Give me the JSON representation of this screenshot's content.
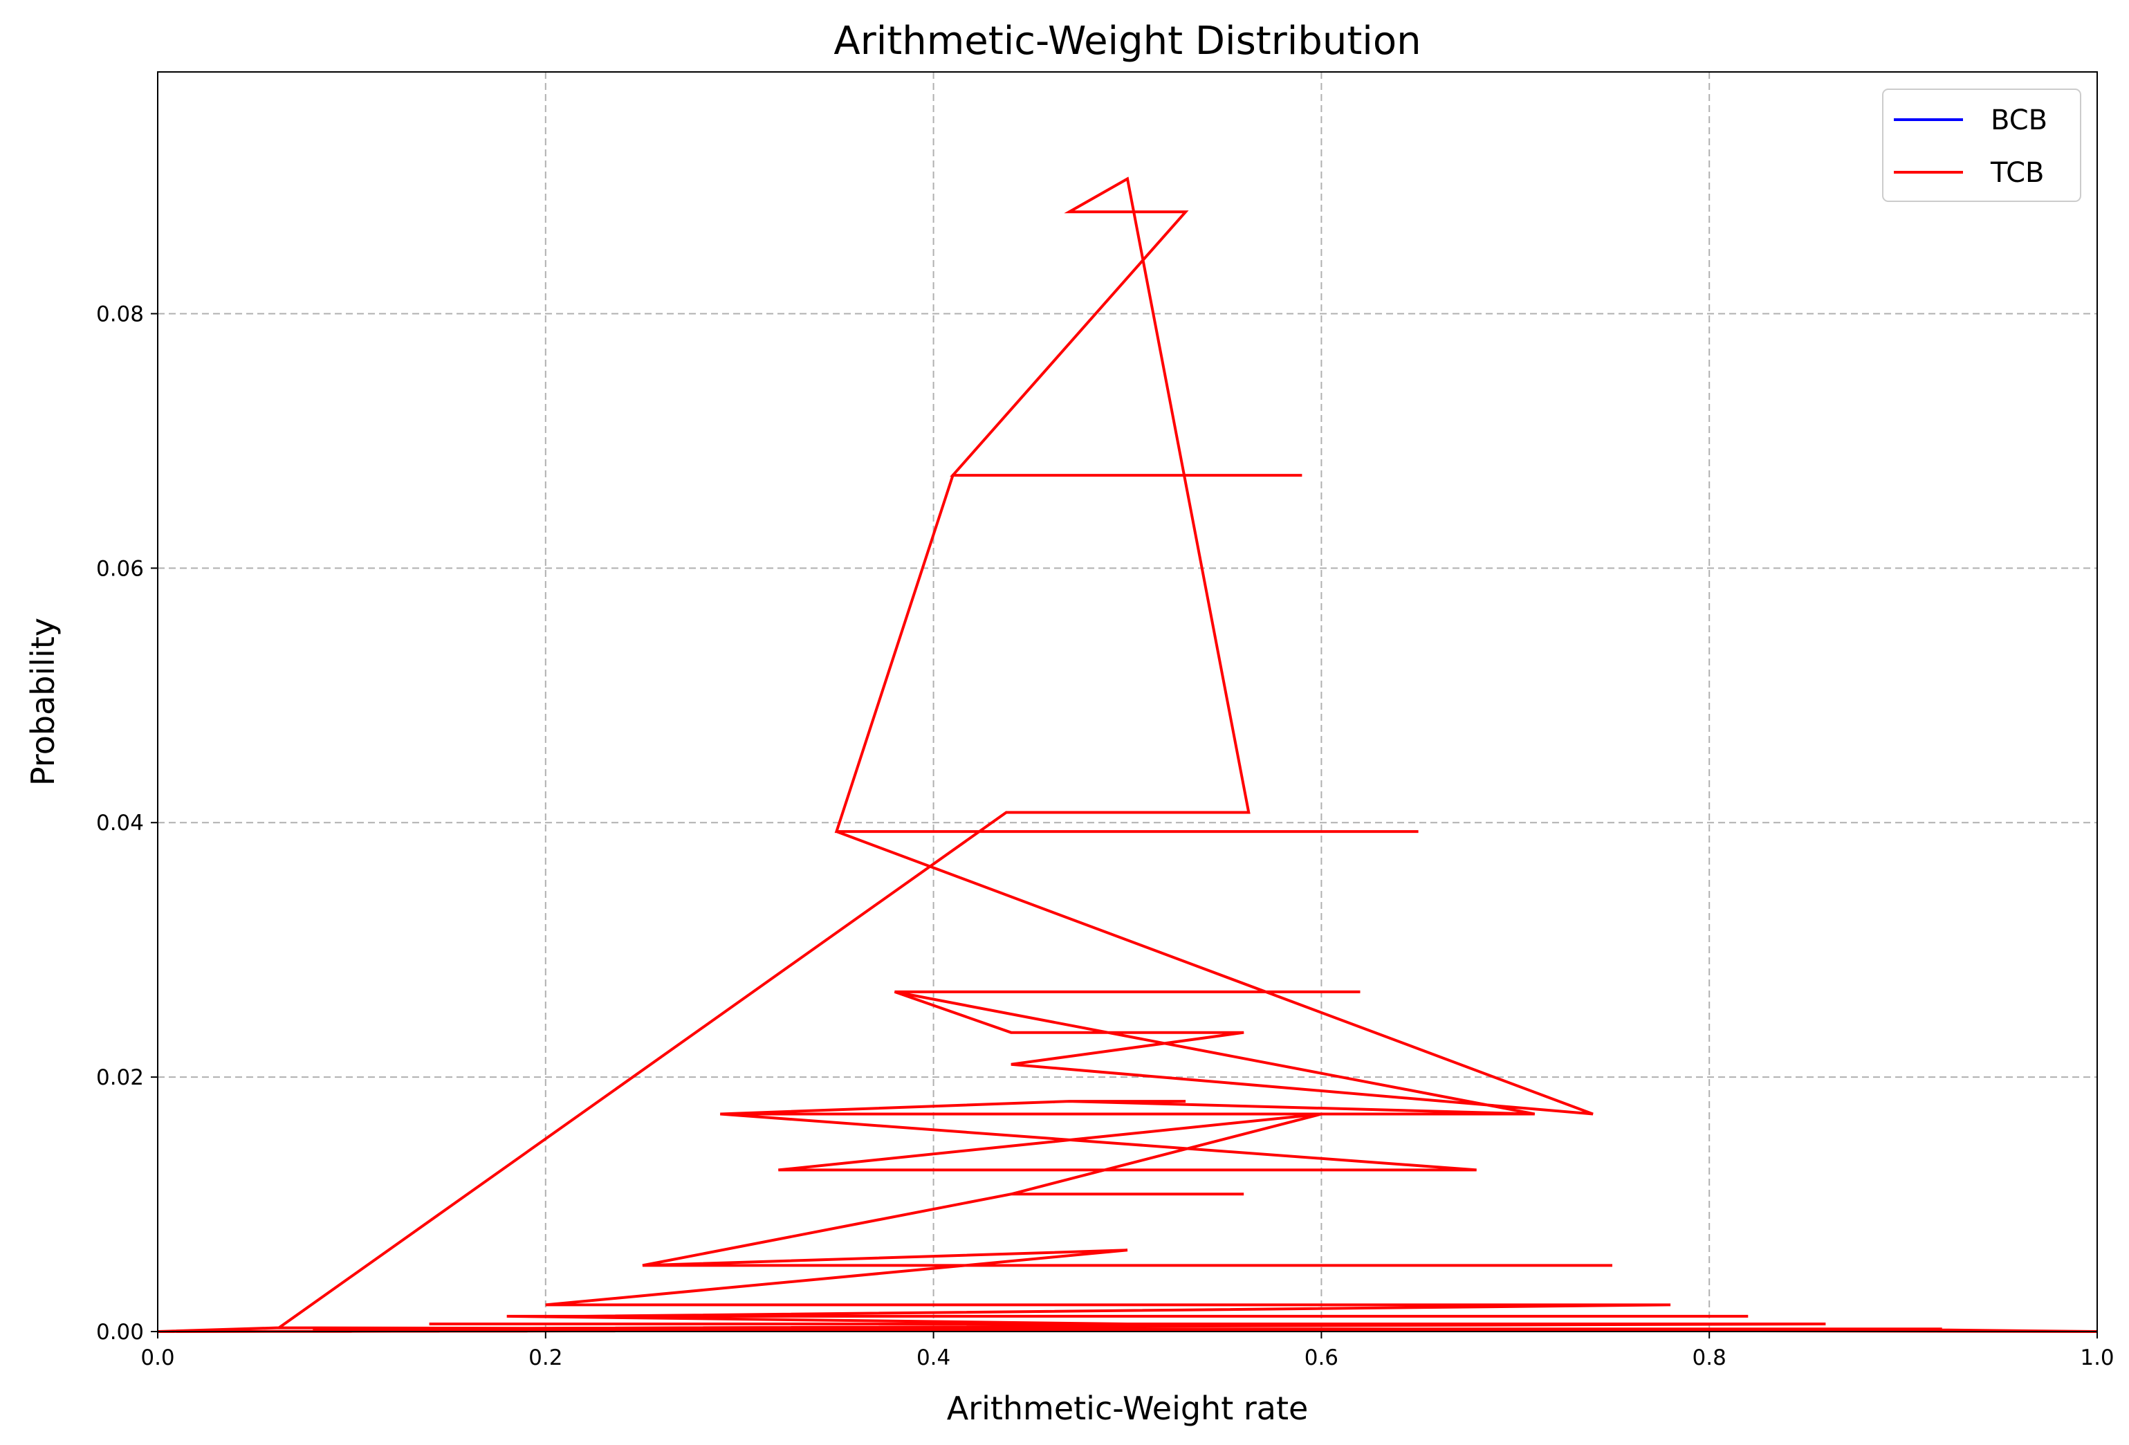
{
  "chart_data": {
    "type": "line",
    "title": "Arithmetic-Weight Distribution",
    "xlabel": "Arithmetic-Weight rate",
    "ylabel": "Probability",
    "xlim": [
      0.0,
      1.0
    ],
    "ylim": [
      0.0,
      0.099
    ],
    "x_ticks": [
      0.0,
      0.2,
      0.4,
      0.6,
      0.8,
      1.0
    ],
    "x_tick_labels": [
      "0.0",
      "0.2",
      "0.4",
      "0.6",
      "0.8",
      "1.0"
    ],
    "y_ticks": [
      0.0,
      0.02,
      0.04,
      0.06,
      0.08
    ],
    "y_tick_labels": [
      "0.00",
      "0.02",
      "0.04",
      "0.06",
      "0.08"
    ],
    "grid": true,
    "legend_position": "top-right",
    "series": [
      {
        "name": "BCB",
        "color": "#0000ff",
        "x": [],
        "y": []
      },
      {
        "name": "TCB",
        "color": "#ff0000",
        "x": [
          0.0,
          0.0625,
          1.0,
          0.0625,
          0.4375,
          0.5625,
          0.4375,
          0.5625,
          0.5,
          0.47,
          0.53,
          0.41,
          0.59,
          0.41,
          0.35,
          0.65,
          0.35,
          0.74,
          0.44,
          0.56,
          0.44,
          0.38,
          0.62,
          0.38,
          0.71,
          0.47,
          0.53,
          0.47,
          0.29,
          0.71,
          0.29,
          0.68,
          0.32,
          0.68,
          0.32,
          0.6,
          0.4,
          0.6,
          0.44,
          0.56,
          0.44,
          0.25,
          0.75,
          0.25,
          0.5,
          0.2,
          0.78,
          0.22,
          0.82,
          0.18,
          0.5,
          0.14,
          0.86,
          0.08,
          0.92,
          0.0,
          0.875,
          1.0
        ],
        "y": [
          0.0,
          0.0003,
          0.0,
          0.0003,
          0.0408,
          0.0408,
          0.0408,
          0.0408,
          0.0906,
          0.088,
          0.088,
          0.0673,
          0.0673,
          0.0673,
          0.0393,
          0.0393,
          0.0393,
          0.0171,
          0.021,
          0.0235,
          0.0235,
          0.0267,
          0.0267,
          0.0267,
          0.0171,
          0.0181,
          0.0181,
          0.0181,
          0.0171,
          0.0171,
          0.0171,
          0.0127,
          0.0127,
          0.0127,
          0.0127,
          0.0171,
          0.0171,
          0.0171,
          0.0108,
          0.0108,
          0.0108,
          0.0052,
          0.0052,
          0.0052,
          0.0064,
          0.0021,
          0.0021,
          0.0012,
          0.0012,
          0.0012,
          0.0006,
          0.0006,
          0.0006,
          0.0002,
          0.0002,
          0.0,
          0.0002,
          0.0
        ]
      }
    ]
  }
}
